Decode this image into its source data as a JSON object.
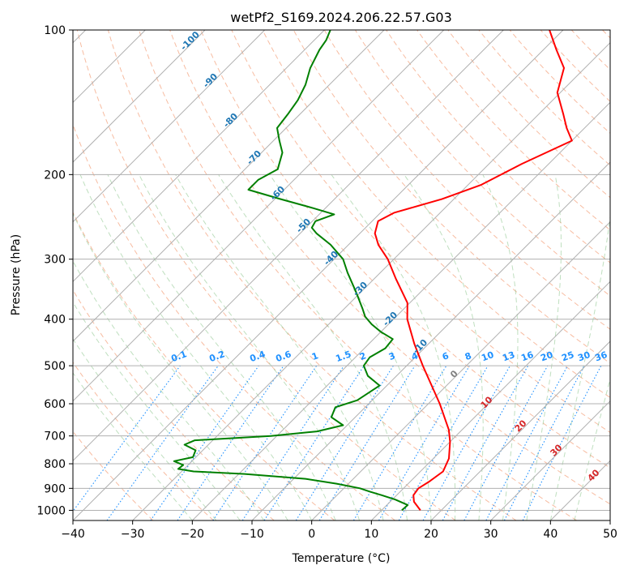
{
  "chart_data": {
    "type": "line",
    "title": "wetPf2_S169.2024.206.22.57.G03",
    "xlabel": "Temperature (°C)",
    "ylabel": "Pressure (hPa)",
    "xlim": [
      -40,
      50
    ],
    "ylim": [
      1050,
      100
    ],
    "y_scale": "log",
    "skew": true,
    "grid": true,
    "x_ticks": [
      -40,
      -30,
      -20,
      -10,
      0,
      10,
      20,
      30,
      40,
      50
    ],
    "y_ticks": [
      100,
      200,
      300,
      400,
      500,
      600,
      700,
      800,
      900,
      1000
    ],
    "series": [
      {
        "color": "#ff0000",
        "points": [
          {
            "p": 1000,
            "t": 16.5
          },
          {
            "p": 960,
            "t": 14
          },
          {
            "p": 930,
            "t": 12.8
          },
          {
            "p": 900,
            "t": 12.5
          },
          {
            "p": 870,
            "t": 13.2
          },
          {
            "p": 830,
            "t": 13.8
          },
          {
            "p": 780,
            "t": 12.6
          },
          {
            "p": 720,
            "t": 10
          },
          {
            "p": 680,
            "t": 7.8
          },
          {
            "p": 600,
            "t": 1.9
          },
          {
            "p": 500,
            "t": -7.3
          },
          {
            "p": 450,
            "t": -12.4
          },
          {
            "p": 400,
            "t": -17.7
          },
          {
            "p": 370,
            "t": -20.4
          },
          {
            "p": 330,
            "t": -26.3
          },
          {
            "p": 300,
            "t": -31
          },
          {
            "p": 280,
            "t": -35
          },
          {
            "p": 265,
            "t": -37.5
          },
          {
            "p": 250,
            "t": -39
          },
          {
            "p": 240,
            "t": -37.7
          },
          {
            "p": 225,
            "t": -32
          },
          {
            "p": 210,
            "t": -27.8
          },
          {
            "p": 190,
            "t": -24.5
          },
          {
            "p": 170,
            "t": -20
          },
          {
            "p": 160,
            "t": -23
          },
          {
            "p": 150,
            "t": -25.8
          },
          {
            "p": 135,
            "t": -30.5
          },
          {
            "p": 120,
            "t": -33.5
          },
          {
            "p": 110,
            "t": -37.8
          },
          {
            "p": 100,
            "t": -42.3
          }
        ]
      },
      {
        "color": "#008000",
        "points": [
          {
            "p": 1000,
            "t": 13.4
          },
          {
            "p": 975,
            "t": 13.5
          },
          {
            "p": 950,
            "t": 10.5
          },
          {
            "p": 930,
            "t": 7.5
          },
          {
            "p": 915,
            "t": 5
          },
          {
            "p": 900,
            "t": 2.7
          },
          {
            "p": 880,
            "t": -2
          },
          {
            "p": 860,
            "t": -8
          },
          {
            "p": 840,
            "t": -19
          },
          {
            "p": 830,
            "t": -28
          },
          {
            "p": 820,
            "t": -31
          },
          {
            "p": 805,
            "t": -30.8
          },
          {
            "p": 790,
            "t": -33
          },
          {
            "p": 775,
            "t": -30.5
          },
          {
            "p": 750,
            "t": -31.2
          },
          {
            "p": 730,
            "t": -34
          },
          {
            "p": 715,
            "t": -33
          },
          {
            "p": 700,
            "t": -21
          },
          {
            "p": 685,
            "t": -14
          },
          {
            "p": 665,
            "t": -10.7
          },
          {
            "p": 640,
            "t": -14
          },
          {
            "p": 610,
            "t": -15
          },
          {
            "p": 590,
            "t": -12.5
          },
          {
            "p": 550,
            "t": -11.2
          },
          {
            "p": 525,
            "t": -14.8
          },
          {
            "p": 500,
            "t": -17.2
          },
          {
            "p": 480,
            "t": -17.6
          },
          {
            "p": 460,
            "t": -16.5
          },
          {
            "p": 440,
            "t": -16.8
          },
          {
            "p": 425,
            "t": -20
          },
          {
            "p": 410,
            "t": -22.8
          },
          {
            "p": 395,
            "t": -25.2
          },
          {
            "p": 380,
            "t": -27
          },
          {
            "p": 350,
            "t": -31
          },
          {
            "p": 320,
            "t": -35.5
          },
          {
            "p": 300,
            "t": -38.5
          },
          {
            "p": 280,
            "t": -43
          },
          {
            "p": 265,
            "t": -47.3
          },
          {
            "p": 258,
            "t": -49
          },
          {
            "p": 250,
            "t": -49.5
          },
          {
            "p": 242,
            "t": -47.5
          },
          {
            "p": 235,
            "t": -52
          },
          {
            "p": 225,
            "t": -59
          },
          {
            "p": 215,
            "t": -66
          },
          {
            "p": 205,
            "t": -66
          },
          {
            "p": 195,
            "t": -64.5
          },
          {
            "p": 180,
            "t": -66.5
          },
          {
            "p": 170,
            "t": -69
          },
          {
            "p": 160,
            "t": -71.5
          },
          {
            "p": 150,
            "t": -72
          },
          {
            "p": 140,
            "t": -72.7
          },
          {
            "p": 130,
            "t": -74
          },
          {
            "p": 120,
            "t": -76
          },
          {
            "p": 110,
            "t": -77.5
          },
          {
            "p": 105,
            "t": -78
          },
          {
            "p": 100,
            "t": -79
          }
        ]
      }
    ],
    "isotherm_labels": [
      "-100",
      "-90",
      "-80",
      "-70",
      "-60",
      "-50",
      "-40",
      "-30",
      "-20",
      "-10"
    ],
    "mixing_ratio_labels": [
      "0.1",
      "0.2",
      "0.4",
      "0.6",
      "1",
      "1.5",
      "2",
      "3",
      "4",
      "6",
      "8",
      "10",
      "13",
      "16",
      "20",
      "25",
      "30",
      "36"
    ],
    "zero_label": "0",
    "isotherm_warm_labels": [
      "10",
      "20",
      "30",
      "40"
    ],
    "colors": {
      "temperature": "#ff0000",
      "dewpoint": "#008000",
      "isotherm_labels": "#1f77b4",
      "mixing_ratio": "#1e90ff",
      "warm_labels": "#d62728",
      "zero_label": "#808080"
    }
  }
}
